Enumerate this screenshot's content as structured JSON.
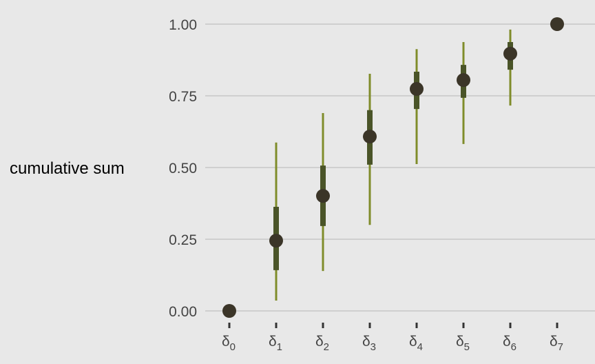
{
  "chart_data": {
    "type": "pointrange",
    "title": "",
    "xlabel": "",
    "ylabel": "cumulative sum",
    "categories": [
      "δ0",
      "δ1",
      "δ2",
      "δ3",
      "δ4",
      "δ5",
      "δ6",
      "δ7"
    ],
    "y_ticks": [
      "0.00",
      "0.25",
      "0.50",
      "0.75",
      "1.00"
    ],
    "ylim": [
      0,
      1
    ],
    "grid": "horizontal",
    "legend": "none",
    "points": [
      0.0,
      0.245,
      0.401,
      0.608,
      0.774,
      0.805,
      0.897,
      1.0
    ],
    "inner_interval": [
      [
        0,
        0
      ],
      [
        0.142,
        0.363
      ],
      [
        0.296,
        0.507
      ],
      [
        0.51,
        0.7
      ],
      [
        0.704,
        0.834
      ],
      [
        0.743,
        0.858
      ],
      [
        0.841,
        0.9375
      ],
      [
        1,
        1
      ]
    ],
    "outer_interval": [
      [
        0,
        0
      ],
      [
        0.036,
        0.587
      ],
      [
        0.139,
        0.69
      ],
      [
        0.3,
        0.827
      ],
      [
        0.512,
        0.913
      ],
      [
        0.582,
        0.9375
      ],
      [
        0.716,
        0.981
      ],
      [
        1,
        1
      ]
    ],
    "colors": {
      "background": "#e8e8e8",
      "grid": "#cfcfcf",
      "point": "#3b3528",
      "inner_interval": "#4a5428",
      "outer_interval": "#7f8c2a"
    }
  }
}
